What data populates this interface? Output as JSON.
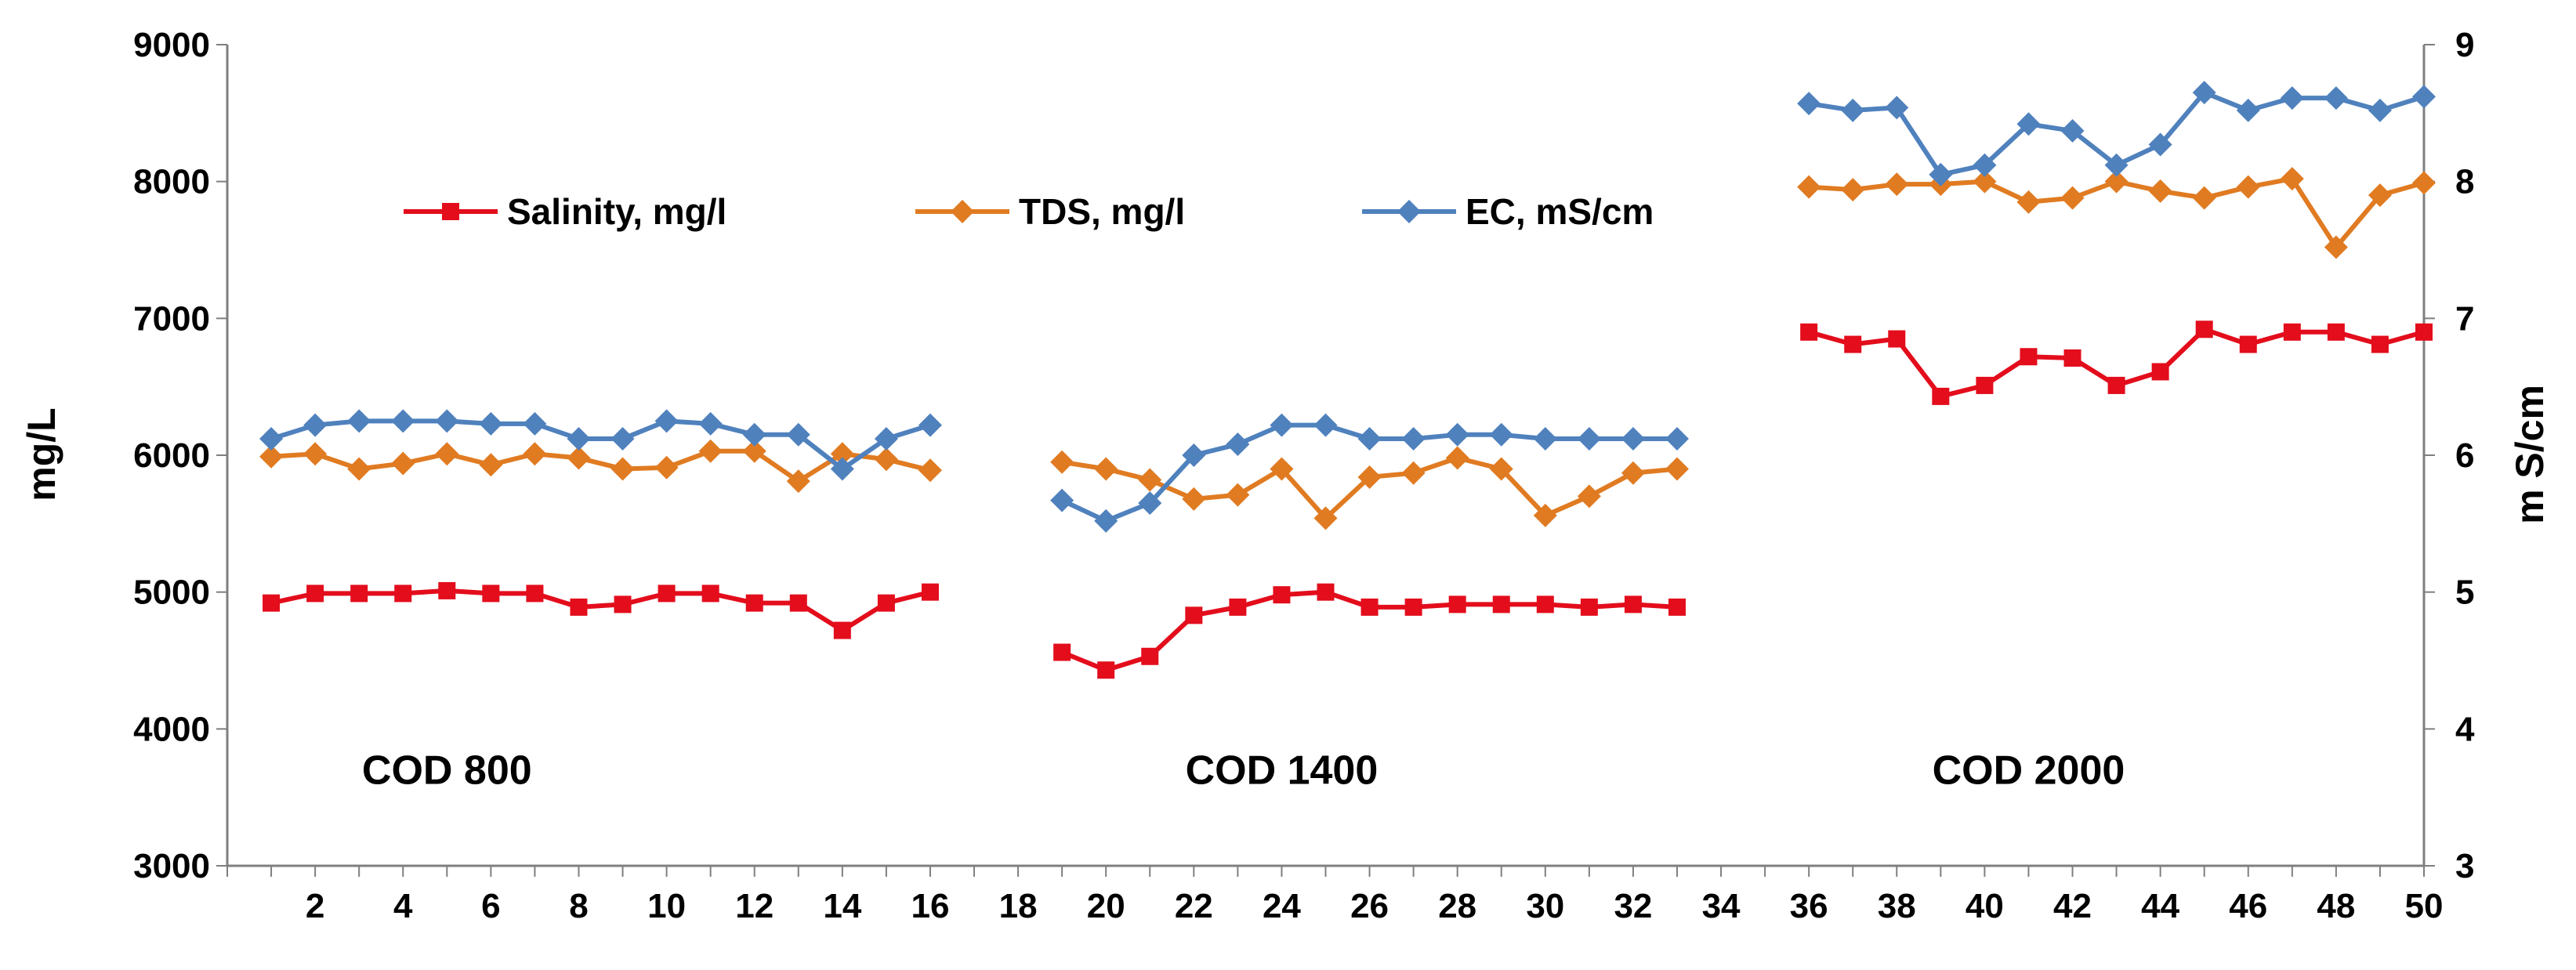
{
  "chart_data": {
    "type": "line",
    "title": "",
    "xlabel": "",
    "ylabel_left": "mg/L",
    "ylabel_right": "m S/cm",
    "xlim": [
      0,
      50
    ],
    "ylim_left": [
      3000,
      9000
    ],
    "ylim_right": [
      3,
      9
    ],
    "x_ticks": [
      2,
      4,
      6,
      8,
      10,
      12,
      14,
      16,
      18,
      20,
      22,
      24,
      26,
      28,
      30,
      32,
      34,
      36,
      38,
      40,
      42,
      44,
      46,
      48,
      50
    ],
    "y_ticks_left": [
      3000,
      4000,
      5000,
      6000,
      7000,
      8000,
      9000
    ],
    "y_ticks_right": [
      3,
      4,
      5,
      6,
      7,
      8,
      9
    ],
    "grid": false,
    "legend_position": "top-left",
    "group_labels": [
      {
        "text": "COD 800",
        "x": 5,
        "y": 3700
      },
      {
        "text": "COD 1400",
        "x": 24,
        "y": 3700
      },
      {
        "text": "COD 2000",
        "x": 41,
        "y": 3700
      }
    ],
    "series": [
      {
        "name": "Salinity, mg/l",
        "axis": "left",
        "color": "#e30d1c",
        "marker": "square",
        "segments": [
          {
            "x": [
              1,
              2,
              3,
              4,
              5,
              6,
              7,
              8,
              9,
              10,
              11,
              12,
              13,
              14,
              15,
              16
            ],
            "y": [
              4920,
              4990,
              4990,
              4990,
              5010,
              4990,
              4990,
              4890,
              4910,
              4990,
              4990,
              4920,
              4920,
              4720,
              4920,
              5000
            ]
          },
          {
            "x": [
              19,
              20,
              21,
              22,
              23,
              24,
              25,
              26,
              27,
              28,
              29,
              30,
              31,
              32,
              33
            ],
            "y": [
              4560,
              4430,
              4530,
              4830,
              4890,
              4980,
              5000,
              4890,
              4890,
              4910,
              4910,
              4910,
              4890,
              4910,
              4890
            ]
          },
          {
            "x": [
              36,
              37,
              38,
              39,
              40,
              41,
              42,
              43,
              44,
              45,
              46,
              47,
              48,
              49,
              50
            ],
            "y": [
              6900,
              6810,
              6850,
              6430,
              6510,
              6720,
              6710,
              6510,
              6610,
              6920,
              6810,
              6900,
              6900,
              6810,
              6900
            ]
          }
        ]
      },
      {
        "name": "TDS, mg/l",
        "axis": "left",
        "color": "#e07b22",
        "marker": "diamond",
        "segments": [
          {
            "x": [
              1,
              2,
              3,
              4,
              5,
              6,
              7,
              8,
              9,
              10,
              11,
              12,
              13,
              14,
              15,
              16
            ],
            "y": [
              5990,
              6010,
              5900,
              5940,
              6010,
              5930,
              6010,
              5980,
              5900,
              5910,
              6030,
              6030,
              5810,
              6010,
              5970,
              5890
            ]
          },
          {
            "x": [
              19,
              20,
              21,
              22,
              23,
              24,
              25,
              26,
              27,
              28,
              29,
              30,
              31,
              32,
              33
            ],
            "y": [
              5950,
              5900,
              5820,
              5680,
              5710,
              5900,
              5540,
              5840,
              5870,
              5980,
              5900,
              5560,
              5700,
              5870,
              5900
            ]
          },
          {
            "x": [
              36,
              37,
              38,
              39,
              40,
              41,
              42,
              43,
              44,
              45,
              46,
              47,
              48,
              49,
              50
            ],
            "y": [
              7960,
              7940,
              7980,
              7980,
              8000,
              7850,
              7880,
              8000,
              7930,
              7880,
              7960,
              8020,
              7520,
              7900,
              7990
            ]
          }
        ]
      },
      {
        "name": "EC, mS/cm",
        "axis": "right",
        "color": "#4f81bd",
        "marker": "diamond",
        "segments": [
          {
            "x": [
              1,
              2,
              3,
              4,
              5,
              6,
              7,
              8,
              9,
              10,
              11,
              12,
              13,
              14,
              15,
              16
            ],
            "y": [
              6.12,
              6.22,
              6.25,
              6.25,
              6.25,
              6.23,
              6.23,
              6.12,
              6.12,
              6.25,
              6.23,
              6.15,
              6.15,
              5.9,
              6.12,
              6.22
            ]
          },
          {
            "x": [
              19,
              20,
              21,
              22,
              23,
              24,
              25,
              26,
              27,
              28,
              29,
              30,
              31,
              32,
              33
            ],
            "y": [
              5.67,
              5.52,
              5.65,
              6.0,
              6.08,
              6.22,
              6.22,
              6.12,
              6.12,
              6.15,
              6.15,
              6.12,
              6.12,
              6.12,
              6.12
            ]
          },
          {
            "x": [
              36,
              37,
              38,
              39,
              40,
              41,
              42,
              43,
              44,
              45,
              46,
              47,
              48,
              49,
              50
            ],
            "y": [
              8.57,
              8.52,
              8.54,
              8.05,
              8.12,
              8.42,
              8.37,
              8.12,
              8.27,
              8.65,
              8.52,
              8.61,
              8.61,
              8.52,
              8.62
            ]
          }
        ]
      }
    ]
  }
}
